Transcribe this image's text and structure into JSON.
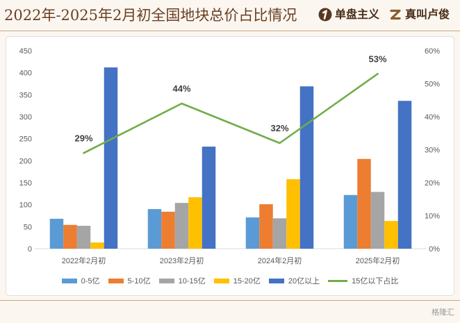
{
  "header": {
    "brands": [
      {
        "icon": "number-one-badge-icon",
        "label": "单盘主义"
      },
      {
        "icon": "z-monogram-icon",
        "label": "真叫卢俊"
      }
    ]
  },
  "footer": {
    "watermark": "格隆汇"
  },
  "theme": {
    "page_background": "#fbf7f0",
    "panel_background": "#ffffff",
    "title_color": "#6b3d22",
    "brand_color": "#4b2d18",
    "rule_color": "#c4a786",
    "axis_text_color": "#595959",
    "label_text_color": "#404040"
  },
  "chart_data": {
    "type": "bar",
    "title": "2022年-2025年2月初全国地块总价占比情况",
    "categories": [
      "2022年2月初",
      "2023年2月初",
      "2024年2月初",
      "2025年2月初"
    ],
    "series": [
      {
        "name": "0-5亿",
        "type": "bar",
        "axis": "left",
        "color": "#5B9BD5",
        "values": [
          68,
          90,
          71,
          122
        ]
      },
      {
        "name": "5-10亿",
        "type": "bar",
        "axis": "left",
        "color": "#ED7D31",
        "values": [
          54,
          84,
          101,
          204
        ]
      },
      {
        "name": "10-15亿",
        "type": "bar",
        "axis": "left",
        "color": "#A5A5A5",
        "values": [
          52,
          104,
          69,
          129
        ]
      },
      {
        "name": "15-20亿",
        "type": "bar",
        "axis": "left",
        "color": "#FFC000",
        "values": [
          14,
          117,
          158,
          63
        ]
      },
      {
        "name": "20亿以上",
        "type": "bar",
        "axis": "left",
        "color": "#4472C4",
        "values": [
          412,
          232,
          369,
          336
        ]
      },
      {
        "name": "15亿以下占比",
        "type": "line",
        "axis": "right",
        "color": "#70AD47",
        "values": [
          29,
          44,
          32,
          53
        ],
        "labels": [
          "29%",
          "44%",
          "32%",
          "53%"
        ]
      }
    ],
    "y_left": {
      "ylim": [
        0,
        450
      ],
      "tick_labels": [
        "0",
        "50",
        "100",
        "150",
        "200",
        "250",
        "300",
        "350",
        "400",
        "450"
      ]
    },
    "y_right": {
      "ylim": [
        0,
        60
      ],
      "tick_labels": [
        "0%",
        "10%",
        "20%",
        "30%",
        "40%",
        "50%",
        "60%"
      ]
    },
    "grid": false,
    "legend_position": "bottom"
  }
}
